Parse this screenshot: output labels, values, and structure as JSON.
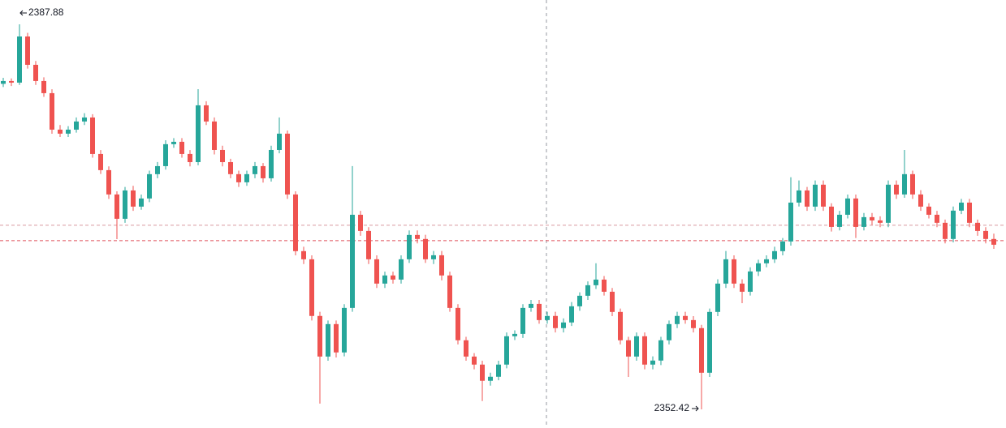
{
  "chart_data": {
    "type": "candlestick",
    "up_color": "#26a69a",
    "down_color": "#ef5350",
    "ylim": [
      2350.7,
      2390.12
    ],
    "price_lines": [
      {
        "value": 2369.37,
        "color": "#d99aa0"
      },
      {
        "value": 2367.96,
        "color": "#e0505a"
      }
    ],
    "open": [
      2382.4,
      2382.66,
      2382.51,
      2386.76,
      2384.15,
      2382.66,
      2381.54,
      2378.18,
      2377.81,
      2378.18,
      2378.93,
      2379.3,
      2375.94,
      2374.45,
      2372.21,
      2369.97,
      2372.58,
      2371.09,
      2371.84,
      2374.08,
      2374.82,
      2376.84,
      2377.06,
      2375.94,
      2375.19,
      2380.42,
      2378.93,
      2376.31,
      2375.19,
      2374.08,
      2373.33,
      2374.08,
      2374.82,
      2373.7,
      2376.31,
      2377.81,
      2372.21,
      2366.99,
      2366.24,
      2361.02,
      2357.28,
      2360.27,
      2357.66,
      2361.76,
      2370.34,
      2368.85,
      2366.24,
      2364.0,
      2364.75,
      2364.37,
      2366.24,
      2368.48,
      2368.11,
      2366.24,
      2366.61,
      2364.75,
      2361.76,
      2358.78,
      2357.28,
      2356.54,
      2355.05,
      2355.42,
      2356.54,
      2359.15,
      2359.37,
      2361.76,
      2362.13,
      2360.64,
      2361.02,
      2359.9,
      2360.42,
      2361.91,
      2362.88,
      2363.85,
      2364.37,
      2363.25,
      2361.39,
      2358.78,
      2357.28,
      2359.15,
      2356.54,
      2356.91,
      2358.78,
      2360.27,
      2361.02,
      2360.64,
      2359.9,
      2355.79,
      2361.39,
      2364.0,
      2366.24,
      2364.0,
      2363.25,
      2365.12,
      2365.87,
      2366.24,
      2366.99,
      2367.88,
      2371.46,
      2372.58,
      2371.09,
      2373.11,
      2371.09,
      2369.22,
      2370.34,
      2371.84,
      2369.22,
      2370.12,
      2369.82,
      2369.6,
      2373.11,
      2372.21,
      2374.08,
      2372.21,
      2371.09,
      2370.34,
      2369.6,
      2368.11,
      2370.72,
      2371.46,
      2369.6,
      2368.85,
      2368.11
    ],
    "close": [
      2382.66,
      2382.51,
      2386.76,
      2384.15,
      2382.66,
      2381.54,
      2378.18,
      2377.81,
      2378.18,
      2378.93,
      2379.3,
      2375.94,
      2374.45,
      2372.21,
      2369.97,
      2372.58,
      2371.09,
      2371.84,
      2374.08,
      2374.82,
      2376.84,
      2377.06,
      2375.94,
      2375.19,
      2380.42,
      2378.93,
      2376.31,
      2375.19,
      2374.08,
      2373.33,
      2374.08,
      2374.82,
      2373.7,
      2376.31,
      2377.81,
      2372.21,
      2366.99,
      2366.24,
      2361.02,
      2357.28,
      2360.27,
      2357.66,
      2361.76,
      2370.34,
      2368.85,
      2366.24,
      2364.0,
      2364.75,
      2364.37,
      2366.24,
      2368.48,
      2368.11,
      2366.24,
      2366.61,
      2364.75,
      2361.76,
      2358.78,
      2357.28,
      2356.54,
      2355.05,
      2355.42,
      2356.54,
      2359.15,
      2359.37,
      2361.76,
      2362.13,
      2360.64,
      2361.02,
      2359.9,
      2360.42,
      2361.91,
      2362.88,
      2363.85,
      2364.37,
      2363.25,
      2361.39,
      2358.78,
      2357.28,
      2359.15,
      2356.54,
      2356.91,
      2358.78,
      2360.27,
      2361.02,
      2360.64,
      2359.9,
      2355.79,
      2361.39,
      2364.0,
      2366.24,
      2364.0,
      2363.25,
      2365.12,
      2365.87,
      2366.24,
      2366.99,
      2367.88,
      2371.46,
      2372.58,
      2371.09,
      2373.11,
      2371.09,
      2369.22,
      2370.34,
      2371.84,
      2369.22,
      2370.12,
      2369.82,
      2369.6,
      2373.11,
      2372.21,
      2374.08,
      2372.21,
      2371.09,
      2370.34,
      2369.6,
      2368.11,
      2370.72,
      2371.46,
      2369.6,
      2368.85,
      2368.11,
      2367.58
    ],
    "high": [
      2382.95,
      2382.9,
      2387.88,
      2387.1,
      2384.5,
      2383.0,
      2381.9,
      2378.6,
      2378.5,
      2379.3,
      2379.7,
      2379.6,
      2376.3,
      2374.8,
      2372.5,
      2372.9,
      2373.0,
      2372.2,
      2374.4,
      2375.2,
      2377.2,
      2377.4,
      2377.4,
      2376.3,
      2381.91,
      2380.8,
      2379.3,
      2376.7,
      2375.5,
      2374.4,
      2374.4,
      2375.2,
      2375.1,
      2376.7,
      2379.3,
      2378.1,
      2372.5,
      2367.4,
      2366.6,
      2361.4,
      2360.6,
      2360.6,
      2362.1,
      2374.82,
      2370.7,
      2369.2,
      2366.6,
      2365.1,
      2365.1,
      2366.6,
      2368.9,
      2368.9,
      2368.5,
      2367.0,
      2367.0,
      2365.1,
      2362.1,
      2359.1,
      2357.6,
      2356.9,
      2355.8,
      2356.9,
      2359.5,
      2359.7,
      2362.1,
      2362.5,
      2362.5,
      2361.4,
      2361.4,
      2360.8,
      2362.3,
      2363.2,
      2364.2,
      2365.87,
      2364.7,
      2363.6,
      2361.7,
      2359.1,
      2359.5,
      2359.5,
      2357.3,
      2359.1,
      2360.6,
      2361.4,
      2361.4,
      2361.0,
      2360.2,
      2361.7,
      2364.4,
      2367.0,
      2366.6,
      2364.4,
      2365.5,
      2366.2,
      2366.6,
      2367.4,
      2368.2,
      2373.8,
      2373.5,
      2372.9,
      2373.5,
      2373.5,
      2371.4,
      2370.7,
      2372.2,
      2372.2,
      2370.5,
      2370.5,
      2370.2,
      2373.5,
      2373.5,
      2376.31,
      2374.4,
      2372.6,
      2371.4,
      2370.7,
      2369.9,
      2371.1,
      2371.8,
      2371.8,
      2369.9,
      2369.2,
      2368.6
    ],
    "low": [
      2382.1,
      2382.2,
      2382.3,
      2383.8,
      2382.3,
      2381.2,
      2377.8,
      2377.5,
      2377.5,
      2377.9,
      2378.6,
      2375.6,
      2374.1,
      2371.8,
      2368.1,
      2369.6,
      2370.7,
      2370.8,
      2371.5,
      2373.7,
      2374.5,
      2376.5,
      2375.6,
      2374.8,
      2374.9,
      2378.6,
      2375.9,
      2374.8,
      2373.7,
      2372.9,
      2373.0,
      2373.7,
      2373.3,
      2373.4,
      2376.0,
      2371.8,
      2366.6,
      2365.8,
      2360.6,
      2352.95,
      2356.9,
      2357.2,
      2357.3,
      2361.4,
      2368.4,
      2365.8,
      2363.6,
      2363.6,
      2364.0,
      2364.0,
      2365.9,
      2367.7,
      2365.9,
      2365.8,
      2364.3,
      2361.4,
      2358.4,
      2356.9,
      2356.1,
      2353.18,
      2354.6,
      2355.1,
      2356.2,
      2358.8,
      2359.0,
      2361.4,
      2360.3,
      2360.3,
      2359.5,
      2359.5,
      2360.1,
      2361.5,
      2362.5,
      2363.5,
      2362.9,
      2361.0,
      2358.4,
      2355.4,
      2356.9,
      2356.1,
      2356.1,
      2356.5,
      2358.4,
      2359.9,
      2360.3,
      2359.5,
      2352.42,
      2355.4,
      2361.0,
      2363.6,
      2363.6,
      2362.2,
      2362.9,
      2364.7,
      2365.5,
      2365.9,
      2366.6,
      2367.5,
      2371.1,
      2370.7,
      2370.7,
      2370.7,
      2368.8,
      2368.9,
      2370.0,
      2368.2,
      2368.9,
      2369.4,
      2369.2,
      2369.2,
      2371.8,
      2371.9,
      2371.8,
      2370.7,
      2370.0,
      2369.2,
      2367.7,
      2367.8,
      2370.4,
      2369.2,
      2368.4,
      2367.7,
      2367.2
    ]
  }
}
